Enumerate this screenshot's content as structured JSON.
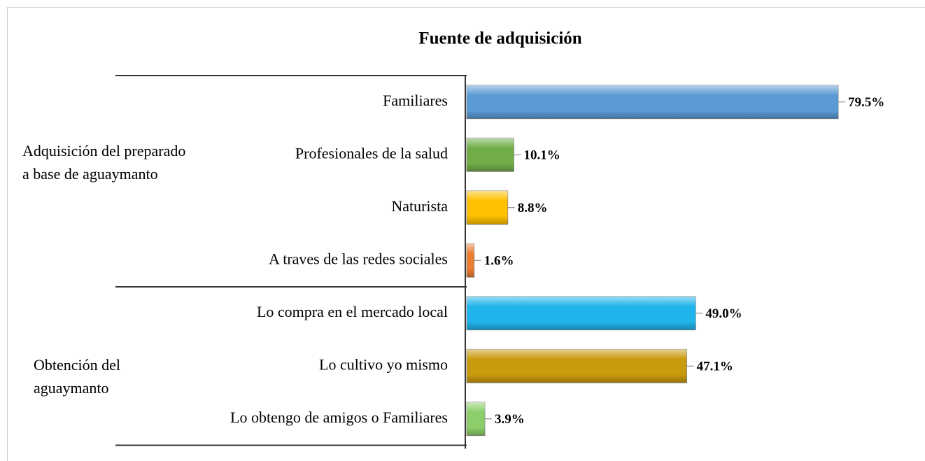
{
  "chart_data": {
    "type": "bar",
    "title": "Fuente de adquisición",
    "xlim": [
      0,
      100
    ],
    "groups": [
      {
        "label": "Adquisición del preparado a base de aguaymanto",
        "categories": [
          "Familiares",
          "Profesionales de la salud",
          "Naturista",
          "A traves de las redes sociales"
        ],
        "values": [
          79.5,
          10.1,
          8.8,
          1.6
        ],
        "value_labels": [
          "79.5%",
          "10.1%",
          "8.8%",
          "1.6%"
        ],
        "colors": [
          "#5b9bd5",
          "#70ad47",
          "#ffc000",
          "#ed7d31"
        ]
      },
      {
        "label": "Obtención del aguaymanto",
        "categories": [
          "Lo compra en el mercado local",
          "Lo cultivo yo mismo",
          "Lo obtengo de amigos o Familiares"
        ],
        "values": [
          49.0,
          47.1,
          3.9
        ],
        "value_labels": [
          "49.0%",
          "47.1%",
          "3.9%"
        ],
        "colors": [
          "#1fb4ec",
          "#c99a0c",
          "#8ccf6a"
        ]
      }
    ]
  }
}
